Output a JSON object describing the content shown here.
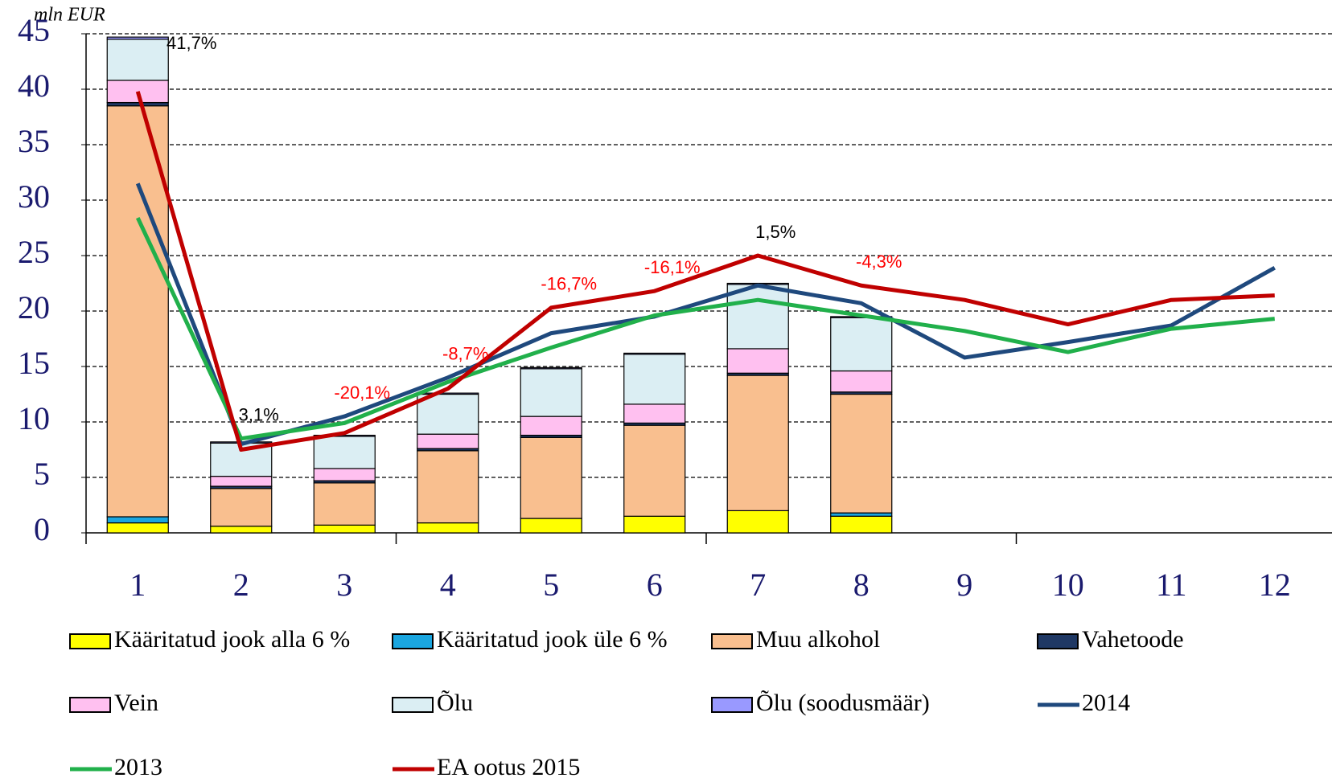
{
  "chart_data": {
    "type": "bar",
    "y_label": "mln EUR",
    "categories": [
      "1",
      "2",
      "3",
      "4",
      "5",
      "6",
      "7",
      "8",
      "9",
      "10",
      "11",
      "12"
    ],
    "ylim": [
      0,
      45
    ],
    "yticks": [
      0,
      5,
      10,
      15,
      20,
      25,
      30,
      35,
      40,
      45
    ],
    "grid": true,
    "stacked": true,
    "series": [
      {
        "name": "Kääritatud jook alla 6 %",
        "type": "bar",
        "color": "#ffff00",
        "values": [
          0.9,
          0.6,
          0.7,
          0.9,
          1.3,
          1.5,
          2.0,
          1.5,
          null,
          null,
          null,
          null
        ]
      },
      {
        "name": "Kääritatud jook üle 6 %",
        "type": "bar",
        "color": "#1aa6e0",
        "values": [
          0.55,
          0,
          0,
          0,
          0,
          0,
          0,
          0.3,
          null,
          null,
          null,
          null
        ]
      },
      {
        "name": "Muu alkohol",
        "type": "bar",
        "color": "#f9bf8f",
        "values": [
          37.05,
          3.4,
          3.8,
          6.5,
          7.3,
          8.2,
          12.2,
          10.7,
          null,
          null,
          null,
          null
        ]
      },
      {
        "name": "Vahetoode",
        "type": "bar",
        "color": "#1f3864",
        "values": [
          0.3,
          0.2,
          0.2,
          0.2,
          0.2,
          0.2,
          0.2,
          0.2,
          null,
          null,
          null,
          null
        ]
      },
      {
        "name": "Vein",
        "type": "bar",
        "color": "#ffc0f0",
        "values": [
          2.0,
          0.9,
          1.1,
          1.3,
          1.7,
          1.7,
          2.2,
          1.9,
          null,
          null,
          null,
          null
        ]
      },
      {
        "name": "Õlu",
        "type": "bar",
        "color": "#dbeef3",
        "values": [
          3.7,
          3.0,
          2.9,
          3.6,
          4.3,
          4.5,
          5.8,
          4.8,
          null,
          null,
          null,
          null
        ]
      },
      {
        "name": "Õlu (soodusmäär)",
        "type": "bar",
        "color": "#9999ff",
        "values": [
          0.2,
          0.1,
          0.1,
          0.1,
          0.1,
          0.1,
          0.1,
          0.1,
          null,
          null,
          null,
          null
        ]
      },
      {
        "name": "2014",
        "type": "line",
        "color": "#1f497d",
        "values": [
          31.5,
          8.0,
          10.5,
          14.0,
          18.0,
          19.5,
          22.3,
          20.7,
          15.8,
          17.2,
          18.7,
          23.9
        ]
      },
      {
        "name": "2013",
        "type": "line",
        "color": "#21b04b",
        "values": [
          28.4,
          8.5,
          9.9,
          13.6,
          16.7,
          19.6,
          21.0,
          19.6,
          18.2,
          16.3,
          18.4,
          19.3
        ]
      },
      {
        "name": "EA ootus 2015",
        "type": "line",
        "color": "#c00000",
        "values": [
          39.8,
          7.5,
          9.0,
          13.0,
          20.3,
          21.8,
          25.0,
          22.3,
          21.0,
          18.8,
          21.0,
          21.4
        ]
      }
    ],
    "annotations": [
      {
        "category": "1",
        "text": "41,7%",
        "color": "#000000"
      },
      {
        "category": "2",
        "text": "3,1%",
        "color": "#000000"
      },
      {
        "category": "3",
        "text": "-20,1%",
        "color": "#ff0000"
      },
      {
        "category": "4",
        "text": "-8,7%",
        "color": "#ff0000"
      },
      {
        "category": "5",
        "text": "-16,7%",
        "color": "#ff0000"
      },
      {
        "category": "6",
        "text": "-16,1%",
        "color": "#ff0000"
      },
      {
        "category": "7",
        "text": "1,5%",
        "color": "#000000"
      },
      {
        "category": "8",
        "text": "-4,3%",
        "color": "#ff0000"
      }
    ]
  }
}
